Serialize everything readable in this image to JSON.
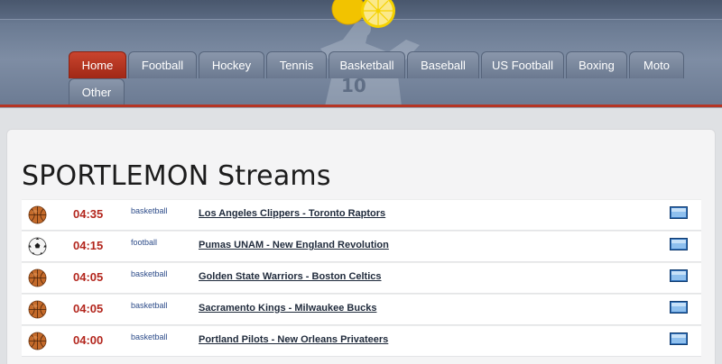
{
  "nav": {
    "tabs": [
      {
        "label": "Home",
        "active": true
      },
      {
        "label": "Football",
        "active": false
      },
      {
        "label": "Hockey",
        "active": false
      },
      {
        "label": "Tennis",
        "active": false
      },
      {
        "label": "Basketball",
        "active": false
      },
      {
        "label": "Baseball",
        "active": false
      },
      {
        "label": "US Football",
        "active": false
      },
      {
        "label": "Boxing",
        "active": false
      },
      {
        "label": "Moto",
        "active": false
      },
      {
        "label": "Other",
        "active": false
      }
    ]
  },
  "main": {
    "title": "SPORTLEMON Streams",
    "events": [
      {
        "icon": "basketball-icon",
        "time": "04:35",
        "sport": "basketball",
        "match": "Los Angeles Clippers - Toronto Raptors"
      },
      {
        "icon": "soccer-ball-icon",
        "time": "04:15",
        "sport": "football",
        "match": "Pumas UNAM - New England Revolution"
      },
      {
        "icon": "basketball-icon",
        "time": "04:05",
        "sport": "basketball",
        "match": "Golden State Warriors - Boston Celtics"
      },
      {
        "icon": "basketball-icon",
        "time": "04:05",
        "sport": "basketball",
        "match": "Sacramento Kings - Milwaukee Bucks"
      },
      {
        "icon": "basketball-icon",
        "time": "04:00",
        "sport": "basketball",
        "match": "Portland Pilots - New Orleans Privateers"
      }
    ]
  },
  "colors": {
    "accent_red": "#b63524",
    "time_red": "#b3261d",
    "sport_blue": "#2e4d8a",
    "header_blue": "#6a7a92"
  }
}
